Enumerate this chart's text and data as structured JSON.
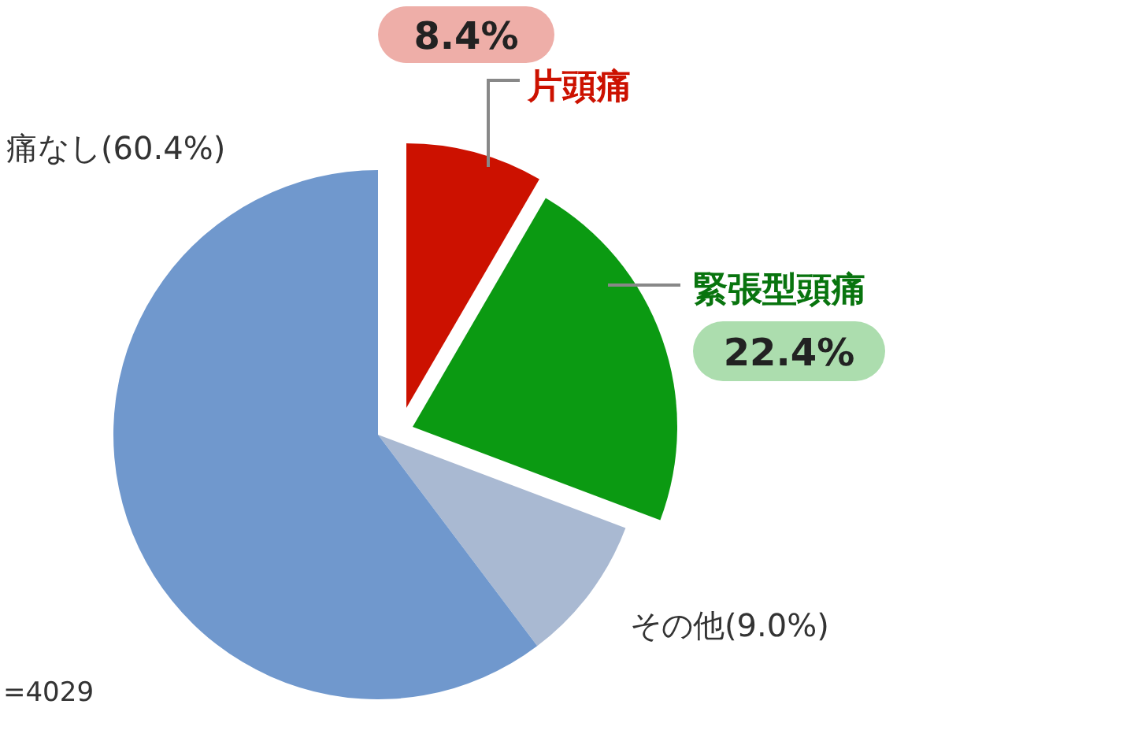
{
  "chart_data": {
    "type": "pie",
    "categories": [
      "片頭痛",
      "緊張型頭痛",
      "その他",
      "痛なし"
    ],
    "values": [
      8.4,
      22.4,
      9.0,
      60.4
    ],
    "colors": [
      "#cc1100",
      "#0b9a12",
      "#a9b9d2",
      "#7098cd"
    ],
    "value_labels": [
      "8.4%",
      "22.4%",
      "(9.0%)",
      "(60.4%)"
    ],
    "annotations": [
      "=4029"
    ]
  }
}
